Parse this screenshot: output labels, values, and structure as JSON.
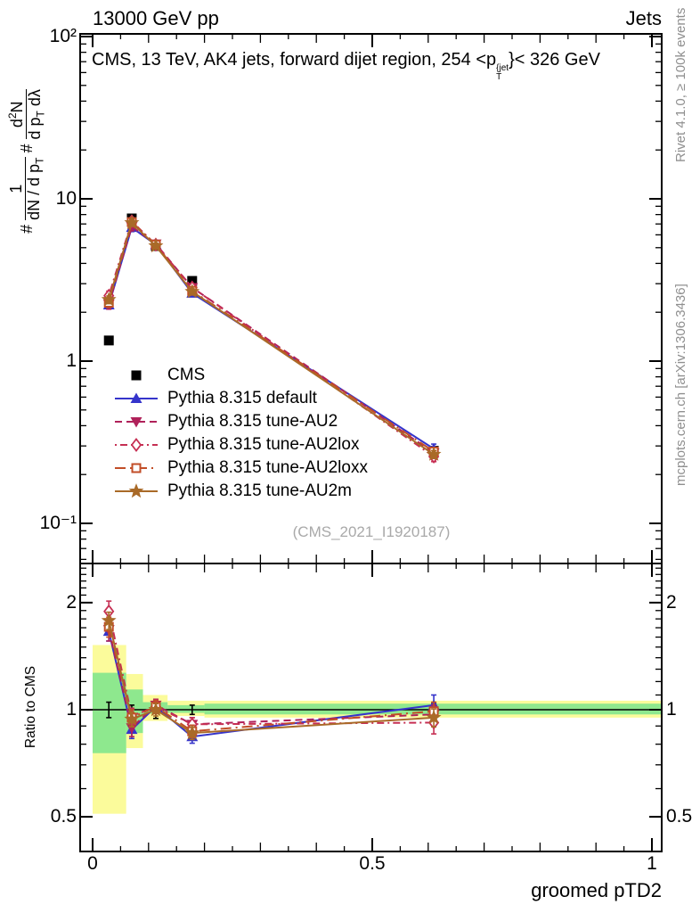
{
  "header": {
    "left": "13000 GeV pp",
    "right": "Jets"
  },
  "title": {
    "a": "CMS, 13 TeV, AK4 jets, forward dijet region, 254 <p",
    "sup": "{jet",
    "sub": "T",
    "b": "}< 326 GeV"
  },
  "watermark": "(CMS_2021_I1920187)",
  "side_notes": {
    "rivet": "Rivet 4.1.0, ≥ 100k events",
    "mcplots": "mcplots.cern.ch [arXiv:1306.3436]"
  },
  "ylabel_parts": {
    "hash1": "#",
    "frac1_num": "1",
    "frac1_den_a": "dN / d p",
    "frac1_den_sub": "T",
    "hash2": "#",
    "frac2_num_a": "d",
    "frac2_num_sup": "2",
    "frac2_num_b": "N",
    "frac2_den_a": "d p",
    "frac2_den_sub": "T",
    "frac2_den_b": " dλ"
  },
  "chart_data": {
    "type": "line",
    "x": [
      0.029,
      0.07,
      0.113,
      0.178,
      0.61
    ],
    "x_tick_labels": [
      "0",
      "0.5",
      "1"
    ],
    "x_ticks": [
      0,
      0.5,
      1
    ],
    "x_minor_step": 0.05,
    "xlabel": "groomed pTD2",
    "xlim": [
      -0.0223,
      1.0175
    ],
    "main": {
      "ylog": true,
      "ylim": [
        0.0566,
        104
      ],
      "yticks": [
        {
          "v": 100,
          "label": "10²"
        },
        {
          "v": 10,
          "label": "10"
        },
        {
          "v": 1,
          "label": "1"
        },
        {
          "v": 0.1,
          "label": "10⁻¹"
        }
      ]
    },
    "ratio": {
      "label": "Ratio to CMS",
      "ylog": true,
      "ylim": [
        0.4,
        2.58
      ],
      "yticks": [
        {
          "v": 2,
          "label": "2"
        },
        {
          "v": 1,
          "label": "1"
        },
        {
          "v": 0.5,
          "label": "0.5"
        }
      ],
      "ref_err": [
        0.05,
        0.03,
        0.055,
        0.03,
        0.04
      ],
      "band_colors": {
        "outer": "#fbfb9b",
        "inner": "#8ee88e"
      },
      "bands": [
        {
          "x0": 0.0,
          "x1": 0.06,
          "outer": [
            0.51,
            1.52
          ],
          "inner": [
            0.755,
            1.27
          ]
        },
        {
          "x0": 0.06,
          "x1": 0.09,
          "outer": [
            0.78,
            1.26
          ],
          "inner": [
            0.86,
            1.14
          ]
        },
        {
          "x0": 0.09,
          "x1": 0.134,
          "outer": [
            0.93,
            1.1
          ],
          "inner": [
            0.975,
            1.05
          ]
        },
        {
          "x0": 0.134,
          "x1": 0.2,
          "outer": [
            0.96,
            1.06
          ],
          "inner": [
            0.98,
            1.03
          ]
        },
        {
          "x0": 0.2,
          "x1": 1.0175,
          "outer": [
            0.95,
            1.06
          ],
          "inner": [
            0.97,
            1.04
          ]
        }
      ]
    },
    "series": [
      {
        "label": "CMS",
        "color": "#000000",
        "marker": "square",
        "open": false,
        "line": "none",
        "values": [
          1.34,
          7.57,
          5.12,
          3.12,
          0.28
        ],
        "err": [
          0.07,
          0.23,
          0.28,
          0.09,
          0.011
        ]
      },
      {
        "label": "Pythia 8.315 default",
        "color": "#3534cb",
        "marker": "triangle-up",
        "open": false,
        "line": "solid",
        "values": [
          2.22,
          6.66,
          5.22,
          2.62,
          0.288
        ],
        "err": [
          0.13,
          0.38,
          0.2,
          0.11,
          0.02
        ],
        "ratio": [
          1.66,
          0.88,
          1.02,
          0.84,
          1.03
        ],
        "ratio_err": [
          0.1,
          0.05,
          0.04,
          0.035,
          0.07
        ]
      },
      {
        "label": "Pythia 8.315 tune-AU2",
        "color": "#b0215a",
        "marker": "triangle-down",
        "open": false,
        "line": "dashed",
        "values": [
          2.25,
          6.74,
          5.27,
          2.84,
          0.272
        ],
        "err": [
          0.16,
          0.38,
          0.2,
          0.12,
          0.017
        ],
        "ratio": [
          1.68,
          0.89,
          1.03,
          0.91,
          0.97
        ],
        "ratio_err": [
          0.12,
          0.05,
          0.04,
          0.04,
          0.06
        ]
      },
      {
        "label": "Pythia 8.315 tune-AU2lox",
        "color": "#c62f53",
        "marker": "diamond",
        "open": true,
        "line": "dashdot",
        "values": [
          2.53,
          7.27,
          5.22,
          2.84,
          0.258
        ],
        "err": [
          0.17,
          0.38,
          0.23,
          0.12,
          0.018
        ],
        "ratio": [
          1.89,
          0.96,
          1.02,
          0.91,
          0.92
        ],
        "ratio_err": [
          0.13,
          0.05,
          0.045,
          0.04,
          0.065
        ]
      },
      {
        "label": "Pythia 8.315 tune-AU2loxx",
        "color": "#c24e27",
        "marker": "square",
        "open": true,
        "line": "dashdotlong",
        "values": [
          2.29,
          7.19,
          5.22,
          2.71,
          0.277
        ],
        "err": [
          0.15,
          0.38,
          0.2,
          0.11,
          0.017
        ],
        "ratio": [
          1.71,
          0.95,
          1.02,
          0.87,
          0.99
        ],
        "ratio_err": [
          0.11,
          0.05,
          0.04,
          0.035,
          0.06
        ]
      },
      {
        "label": "Pythia 8.315 tune-AU2m",
        "color": "#a96a28",
        "marker": "star",
        "open": false,
        "line": "solid",
        "values": [
          2.39,
          7.11,
          5.12,
          2.68,
          0.266
        ],
        "err": [
          0.13,
          0.34,
          0.2,
          0.11,
          0.015
        ],
        "ratio": [
          1.78,
          0.94,
          1.0,
          0.86,
          0.95
        ],
        "ratio_err": [
          0.1,
          0.045,
          0.04,
          0.035,
          0.055
        ]
      }
    ]
  }
}
